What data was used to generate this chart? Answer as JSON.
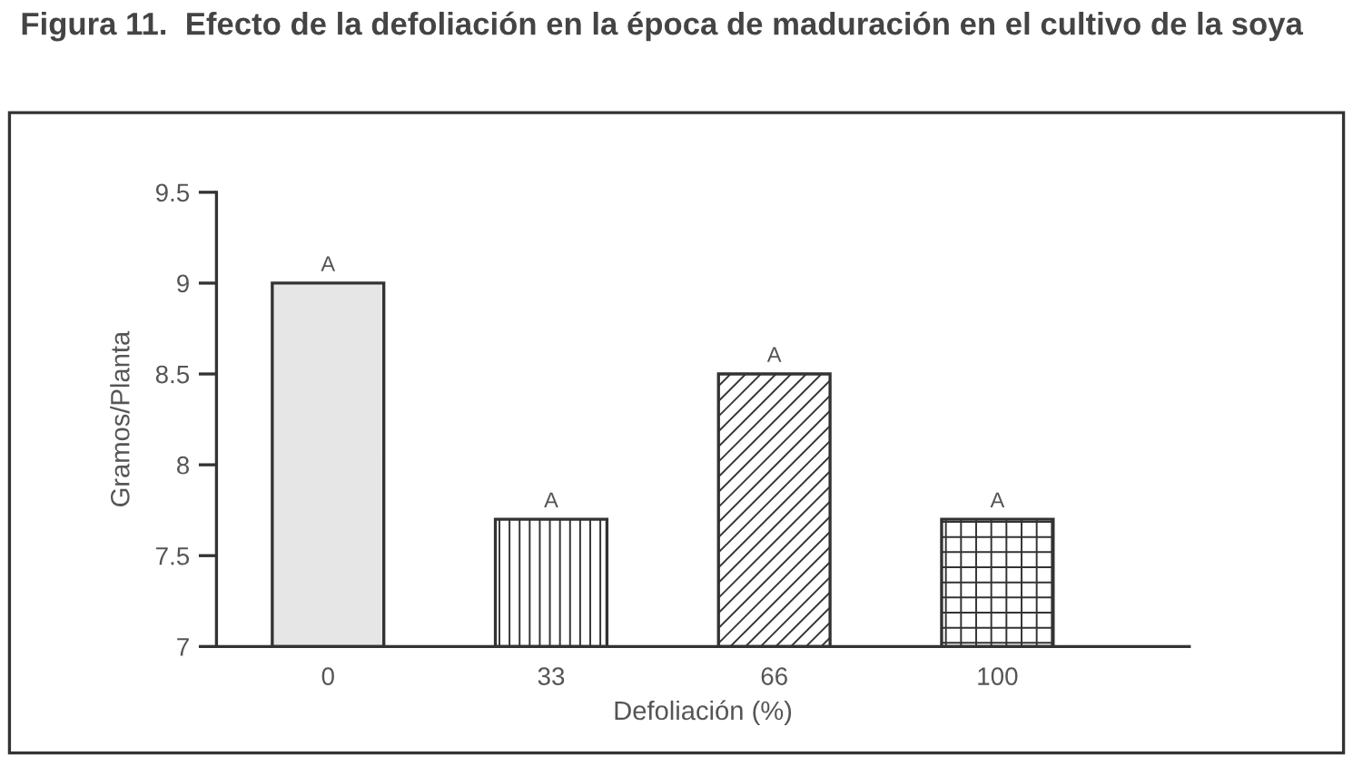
{
  "chart_data": {
    "type": "bar",
    "title": "Figura 11.  Efecto de la defoliación en la época de maduración en el cultivo de la soya",
    "xlabel": "Defoliación (%)",
    "ylabel": "Gramos/Planta",
    "categories": [
      "0",
      "33",
      "66",
      "100"
    ],
    "values": [
      9,
      7.7,
      8.5,
      7.7
    ],
    "colors": [
      "#e6e6e6",
      "#333333",
      "#333333",
      "#333333"
    ],
    "ylim": [
      7,
      9.5
    ],
    "yticks": [
      7,
      7.5,
      8,
      8.5,
      9,
      9.5
    ],
    "grid": false,
    "legend": false,
    "annotations": [
      {
        "text": "A",
        "x": "0",
        "y": 9
      },
      {
        "text": "A",
        "x": "33",
        "y": 7.7
      },
      {
        "text": "A",
        "x": "66",
        "y": 8.5
      },
      {
        "text": "A",
        "x": "100",
        "y": 7.7
      }
    ]
  }
}
